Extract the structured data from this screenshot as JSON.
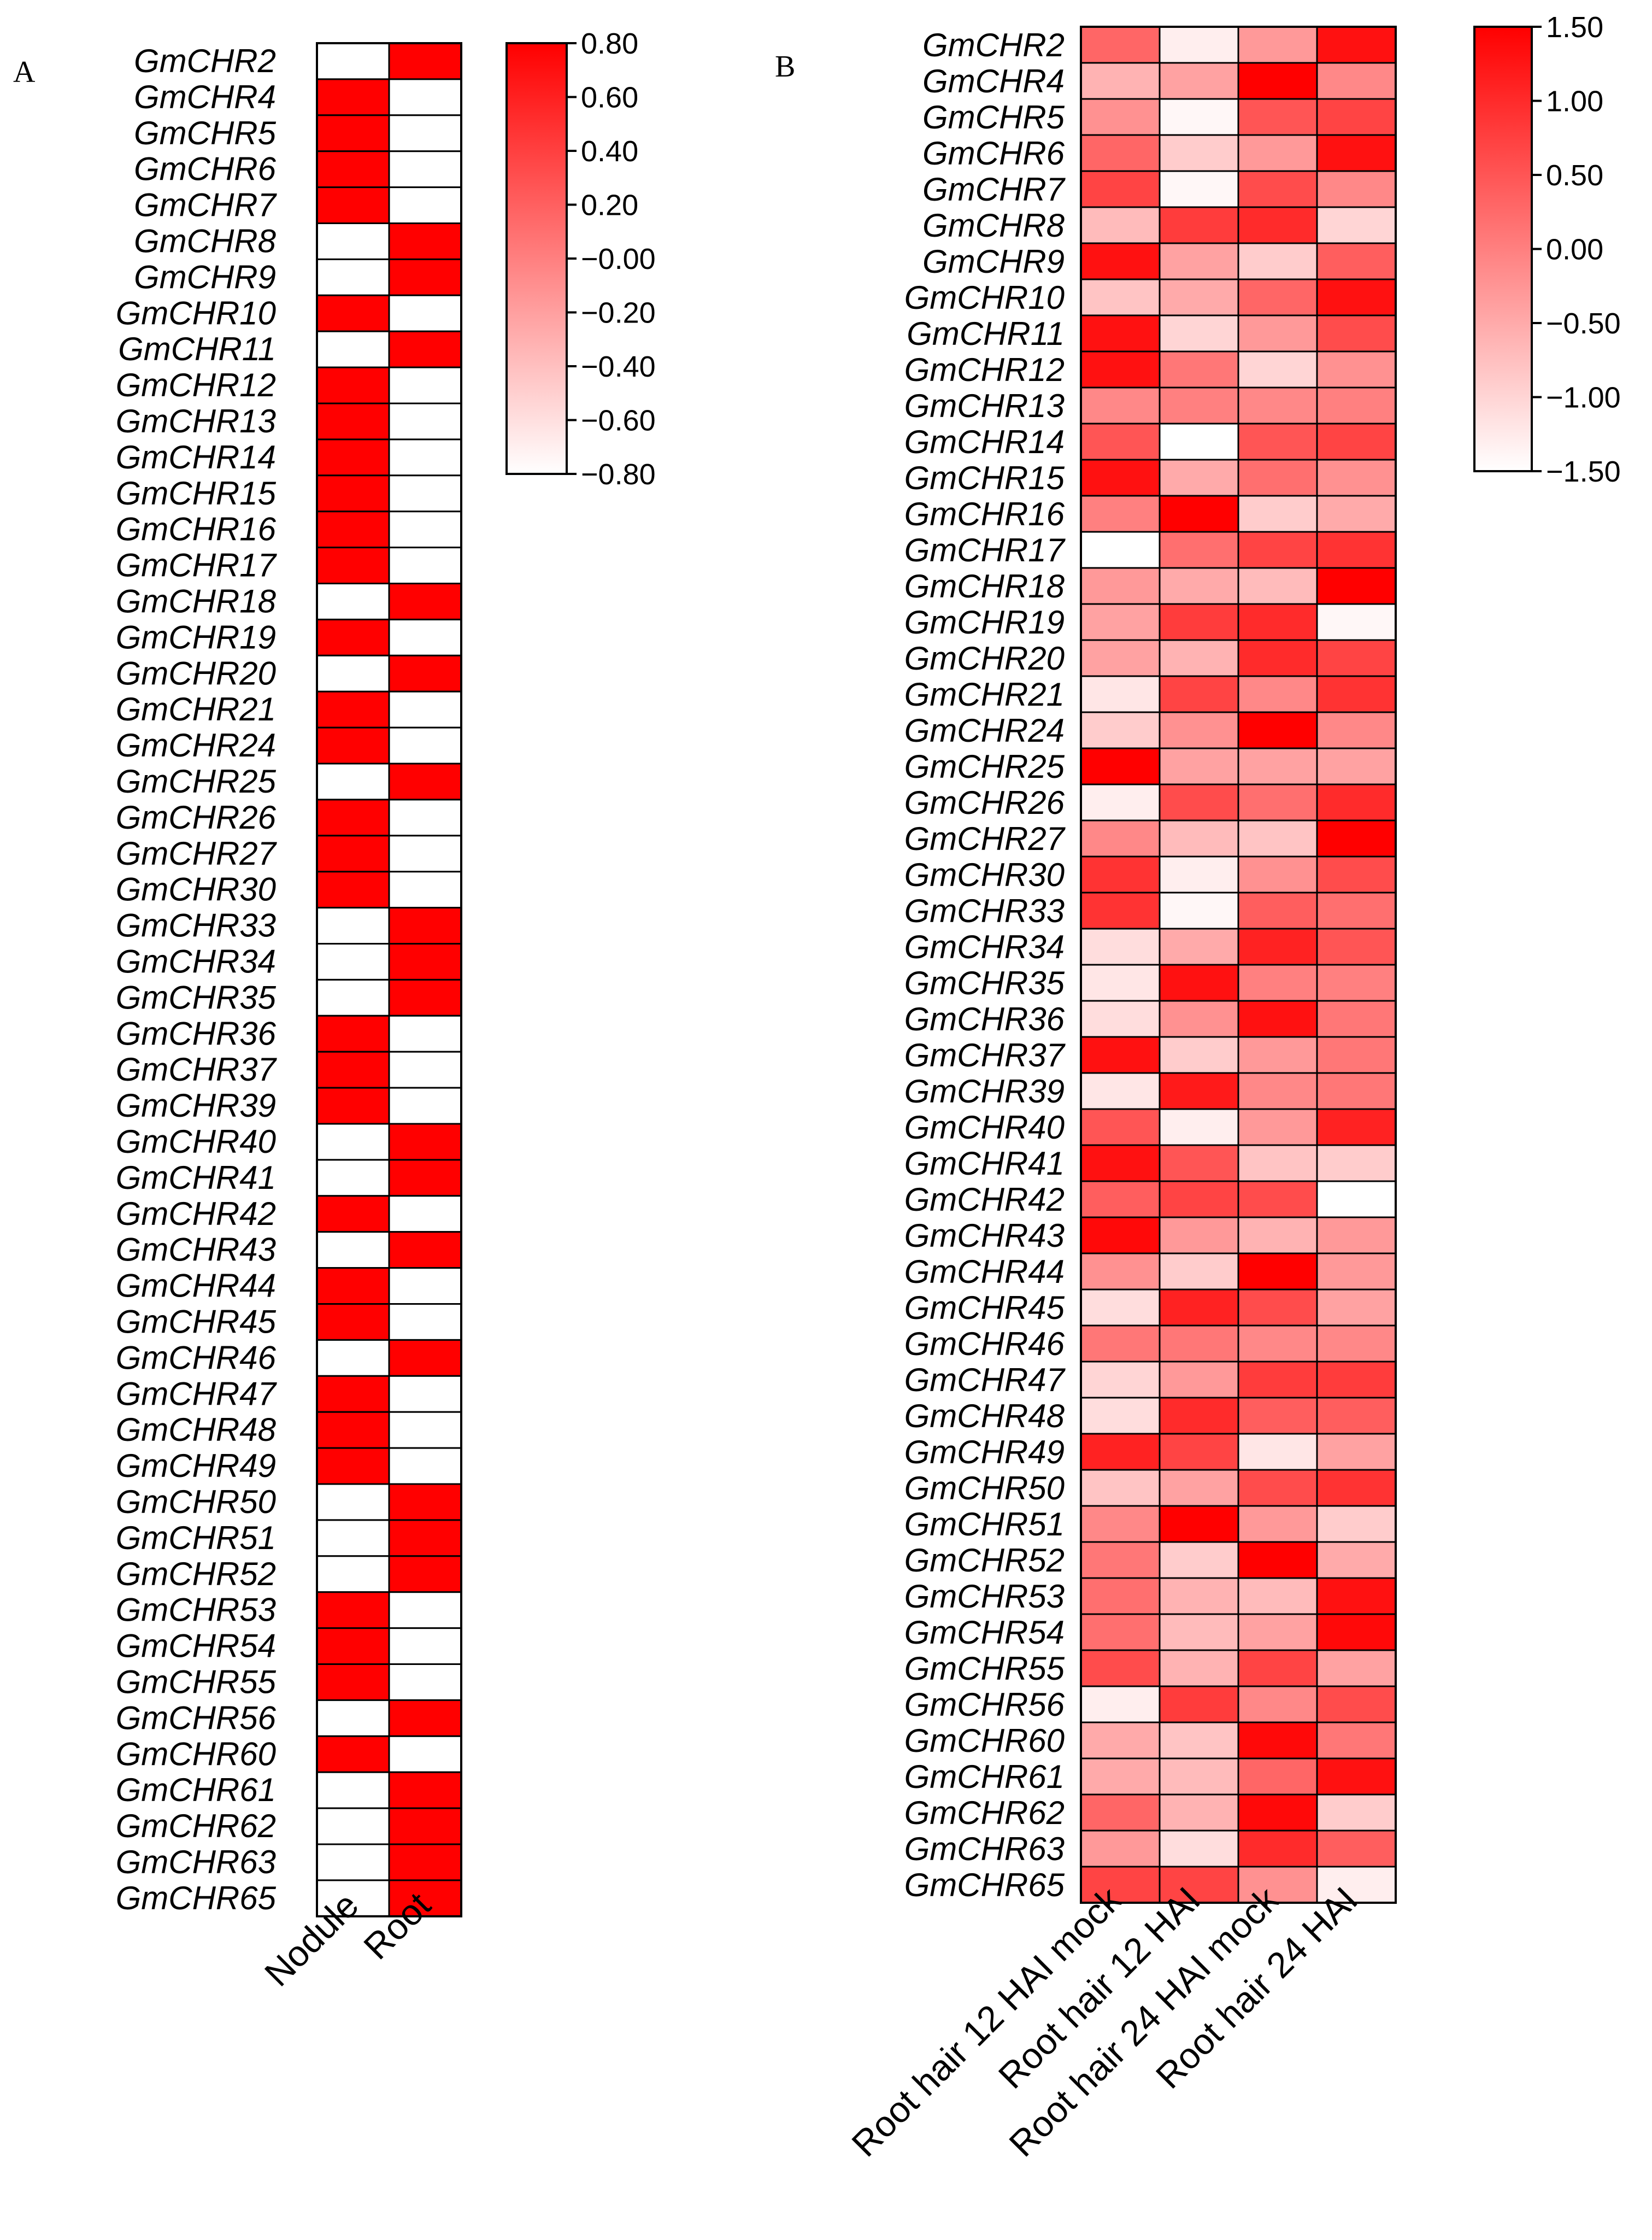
{
  "chart_data": [
    {
      "type": "heatmap",
      "panel_label": "A",
      "rows": [
        "GmCHR2",
        "GmCHR4",
        "GmCHR5",
        "GmCHR6",
        "GmCHR7",
        "GmCHR8",
        "GmCHR9",
        "GmCHR10",
        "GmCHR11",
        "GmCHR12",
        "GmCHR13",
        "GmCHR14",
        "GmCHR15",
        "GmCHR16",
        "GmCHR17",
        "GmCHR18",
        "GmCHR19",
        "GmCHR20",
        "GmCHR21",
        "GmCHR24",
        "GmCHR25",
        "GmCHR26",
        "GmCHR27",
        "GmCHR30",
        "GmCHR33",
        "GmCHR34",
        "GmCHR35",
        "GmCHR36",
        "GmCHR37",
        "GmCHR39",
        "GmCHR40",
        "GmCHR41",
        "GmCHR42",
        "GmCHR43",
        "GmCHR44",
        "GmCHR45",
        "GmCHR46",
        "GmCHR47",
        "GmCHR48",
        "GmCHR49",
        "GmCHR50",
        "GmCHR51",
        "GmCHR52",
        "GmCHR53",
        "GmCHR54",
        "GmCHR55",
        "GmCHR56",
        "GmCHR60",
        "GmCHR61",
        "GmCHR62",
        "GmCHR63",
        "GmCHR65"
      ],
      "columns": [
        "Nodule",
        "Root"
      ],
      "values": [
        [
          -0.8,
          0.8
        ],
        [
          0.8,
          -0.8
        ],
        [
          0.8,
          -0.8
        ],
        [
          0.8,
          -0.8
        ],
        [
          0.8,
          -0.8
        ],
        [
          -0.8,
          0.8
        ],
        [
          -0.8,
          0.8
        ],
        [
          0.8,
          -0.8
        ],
        [
          -0.8,
          0.8
        ],
        [
          0.8,
          -0.8
        ],
        [
          0.8,
          -0.8
        ],
        [
          0.8,
          -0.8
        ],
        [
          0.8,
          -0.8
        ],
        [
          0.8,
          -0.8
        ],
        [
          0.8,
          -0.8
        ],
        [
          -0.8,
          0.8
        ],
        [
          0.8,
          -0.8
        ],
        [
          -0.8,
          0.8
        ],
        [
          0.8,
          -0.8
        ],
        [
          0.8,
          -0.8
        ],
        [
          -0.8,
          0.8
        ],
        [
          0.8,
          -0.8
        ],
        [
          0.8,
          -0.8
        ],
        [
          0.8,
          -0.8
        ],
        [
          -0.8,
          0.8
        ],
        [
          -0.8,
          0.8
        ],
        [
          -0.8,
          0.8
        ],
        [
          0.8,
          -0.8
        ],
        [
          0.8,
          -0.8
        ],
        [
          0.8,
          -0.8
        ],
        [
          -0.8,
          0.8
        ],
        [
          -0.8,
          0.8
        ],
        [
          0.8,
          -0.8
        ],
        [
          -0.8,
          0.8
        ],
        [
          0.8,
          -0.8
        ],
        [
          0.8,
          -0.8
        ],
        [
          -0.8,
          0.8
        ],
        [
          0.8,
          -0.8
        ],
        [
          0.8,
          -0.8
        ],
        [
          0.8,
          -0.8
        ],
        [
          -0.8,
          0.8
        ],
        [
          -0.8,
          0.8
        ],
        [
          -0.8,
          0.8
        ],
        [
          0.8,
          -0.8
        ],
        [
          0.8,
          -0.8
        ],
        [
          0.8,
          -0.8
        ],
        [
          -0.8,
          0.8
        ],
        [
          0.8,
          -0.8
        ],
        [
          -0.8,
          0.8
        ],
        [
          -0.8,
          0.8
        ],
        [
          -0.8,
          0.8
        ],
        [
          -0.8,
          0.8
        ]
      ],
      "colorbar": {
        "min": -0.8,
        "max": 0.8,
        "ticks": [
          0.8,
          0.6,
          0.4,
          0.2,
          0.0,
          -0.2,
          -0.4,
          -0.6,
          -0.8
        ],
        "tick_labels": [
          "0.80",
          "0.60",
          "0.40",
          "0.20",
          "−0.00",
          "−0.20",
          "−0.40",
          "−0.60",
          "−0.80"
        ],
        "low_color": "#ffffff",
        "high_color": "#ff0000"
      }
    },
    {
      "type": "heatmap",
      "panel_label": "B",
      "rows": [
        "GmCHR2",
        "GmCHR4",
        "GmCHR5",
        "GmCHR6",
        "GmCHR7",
        "GmCHR8",
        "GmCHR9",
        "GmCHR10",
        "GmCHR11",
        "GmCHR12",
        "GmCHR13",
        "GmCHR14",
        "GmCHR15",
        "GmCHR16",
        "GmCHR17",
        "GmCHR18",
        "GmCHR19",
        "GmCHR20",
        "GmCHR21",
        "GmCHR24",
        "GmCHR25",
        "GmCHR26",
        "GmCHR27",
        "GmCHR30",
        "GmCHR33",
        "GmCHR34",
        "GmCHR35",
        "GmCHR36",
        "GmCHR37",
        "GmCHR39",
        "GmCHR40",
        "GmCHR41",
        "GmCHR42",
        "GmCHR43",
        "GmCHR44",
        "GmCHR45",
        "GmCHR46",
        "GmCHR47",
        "GmCHR48",
        "GmCHR49",
        "GmCHR50",
        "GmCHR51",
        "GmCHR52",
        "GmCHR53",
        "GmCHR54",
        "GmCHR55",
        "GmCHR56",
        "GmCHR60",
        "GmCHR61",
        "GmCHR62",
        "GmCHR63",
        "GmCHR65"
      ],
      "columns": [
        "Root hair 12 HAI mock",
        "Root hair 12 HAI",
        "Root hair 24 HAI mock",
        "Root hair 24 HAI"
      ],
      "values": [
        [
          0.3,
          -1.3,
          -0.3,
          1.3
        ],
        [
          -0.6,
          -0.4,
          1.5,
          -0.1
        ],
        [
          -0.2,
          -1.4,
          0.5,
          0.7
        ],
        [
          0.3,
          -0.9,
          -0.3,
          1.3
        ],
        [
          0.7,
          -1.4,
          0.6,
          -0.1
        ],
        [
          -0.7,
          0.8,
          1.0,
          -1.0
        ],
        [
          1.3,
          -0.4,
          -0.9,
          0.4
        ],
        [
          -0.8,
          -0.5,
          0.3,
          1.3
        ],
        [
          1.3,
          -1.0,
          -0.3,
          0.6
        ],
        [
          1.3,
          0.1,
          -1.0,
          -0.2
        ],
        [
          -0.1,
          0.0,
          -0.1,
          0.0
        ],
        [
          0.5,
          -1.5,
          0.5,
          0.7
        ],
        [
          1.3,
          -0.5,
          0.2,
          -0.2
        ],
        [
          0.0,
          1.5,
          -0.9,
          -0.5
        ],
        [
          -1.5,
          0.2,
          0.7,
          0.9
        ],
        [
          -0.3,
          -0.5,
          -0.7,
          1.5
        ],
        [
          -0.4,
          0.8,
          1.0,
          -1.4
        ],
        [
          -0.4,
          -0.6,
          1.0,
          0.7
        ],
        [
          -1.2,
          0.7,
          -0.1,
          0.9
        ],
        [
          -0.9,
          -0.2,
          1.5,
          -0.1
        ],
        [
          1.5,
          -0.4,
          -0.4,
          -0.4
        ],
        [
          -1.3,
          0.6,
          0.2,
          1.0
        ],
        [
          -0.1,
          -0.7,
          -0.8,
          1.5
        ],
        [
          0.9,
          -1.3,
          -0.2,
          0.6
        ],
        [
          0.9,
          -1.4,
          0.4,
          0.2
        ],
        [
          -1.1,
          -0.5,
          1.1,
          0.5
        ],
        [
          -1.2,
          1.3,
          0.0,
          0.0
        ],
        [
          -1.1,
          -0.2,
          1.3,
          0.1
        ],
        [
          1.3,
          -0.9,
          -0.3,
          0.1
        ],
        [
          -1.2,
          1.2,
          -0.1,
          0.1
        ],
        [
          0.5,
          -1.3,
          -0.3,
          1.1
        ],
        [
          1.3,
          0.5,
          -0.8,
          -0.9
        ],
        [
          0.4,
          0.7,
          0.6,
          -1.5
        ],
        [
          1.4,
          -0.3,
          -0.6,
          -0.3
        ],
        [
          -0.2,
          -0.9,
          1.5,
          -0.3
        ],
        [
          -1.1,
          1.1,
          0.6,
          -0.4
        ],
        [
          0.1,
          0.1,
          -0.1,
          -0.1
        ],
        [
          -1.0,
          -0.3,
          0.8,
          0.8
        ],
        [
          -1.1,
          1.0,
          0.4,
          0.4
        ],
        [
          1.1,
          0.7,
          -1.2,
          -0.4
        ],
        [
          -0.8,
          -0.4,
          0.6,
          0.9
        ],
        [
          -0.1,
          1.5,
          -0.3,
          -0.9
        ],
        [
          0.1,
          -0.9,
          1.5,
          -0.5
        ],
        [
          0.2,
          -0.6,
          -0.7,
          1.3
        ],
        [
          0.2,
          -0.7,
          -0.4,
          1.4
        ],
        [
          0.6,
          -0.6,
          0.7,
          -0.4
        ],
        [
          -1.3,
          0.8,
          -0.1,
          0.6
        ],
        [
          -0.5,
          -0.8,
          1.4,
          0.1
        ],
        [
          -0.5,
          -0.7,
          0.3,
          1.3
        ],
        [
          0.3,
          -0.6,
          1.4,
          -0.9
        ],
        [
          -0.3,
          -1.1,
          1.0,
          0.4
        ],
        [
          0.7,
          0.7,
          -0.2,
          -1.3
        ]
      ],
      "colorbar": {
        "min": -1.5,
        "max": 1.5,
        "ticks": [
          1.5,
          1.0,
          0.5,
          0.0,
          -0.5,
          -1.0,
          -1.5
        ],
        "tick_labels": [
          "1.50",
          "1.00",
          "0.50",
          "0.00",
          "−0.50",
          "−1.00",
          "−1.50"
        ],
        "low_color": "#ffffff",
        "high_color": "#ff0000"
      }
    }
  ]
}
